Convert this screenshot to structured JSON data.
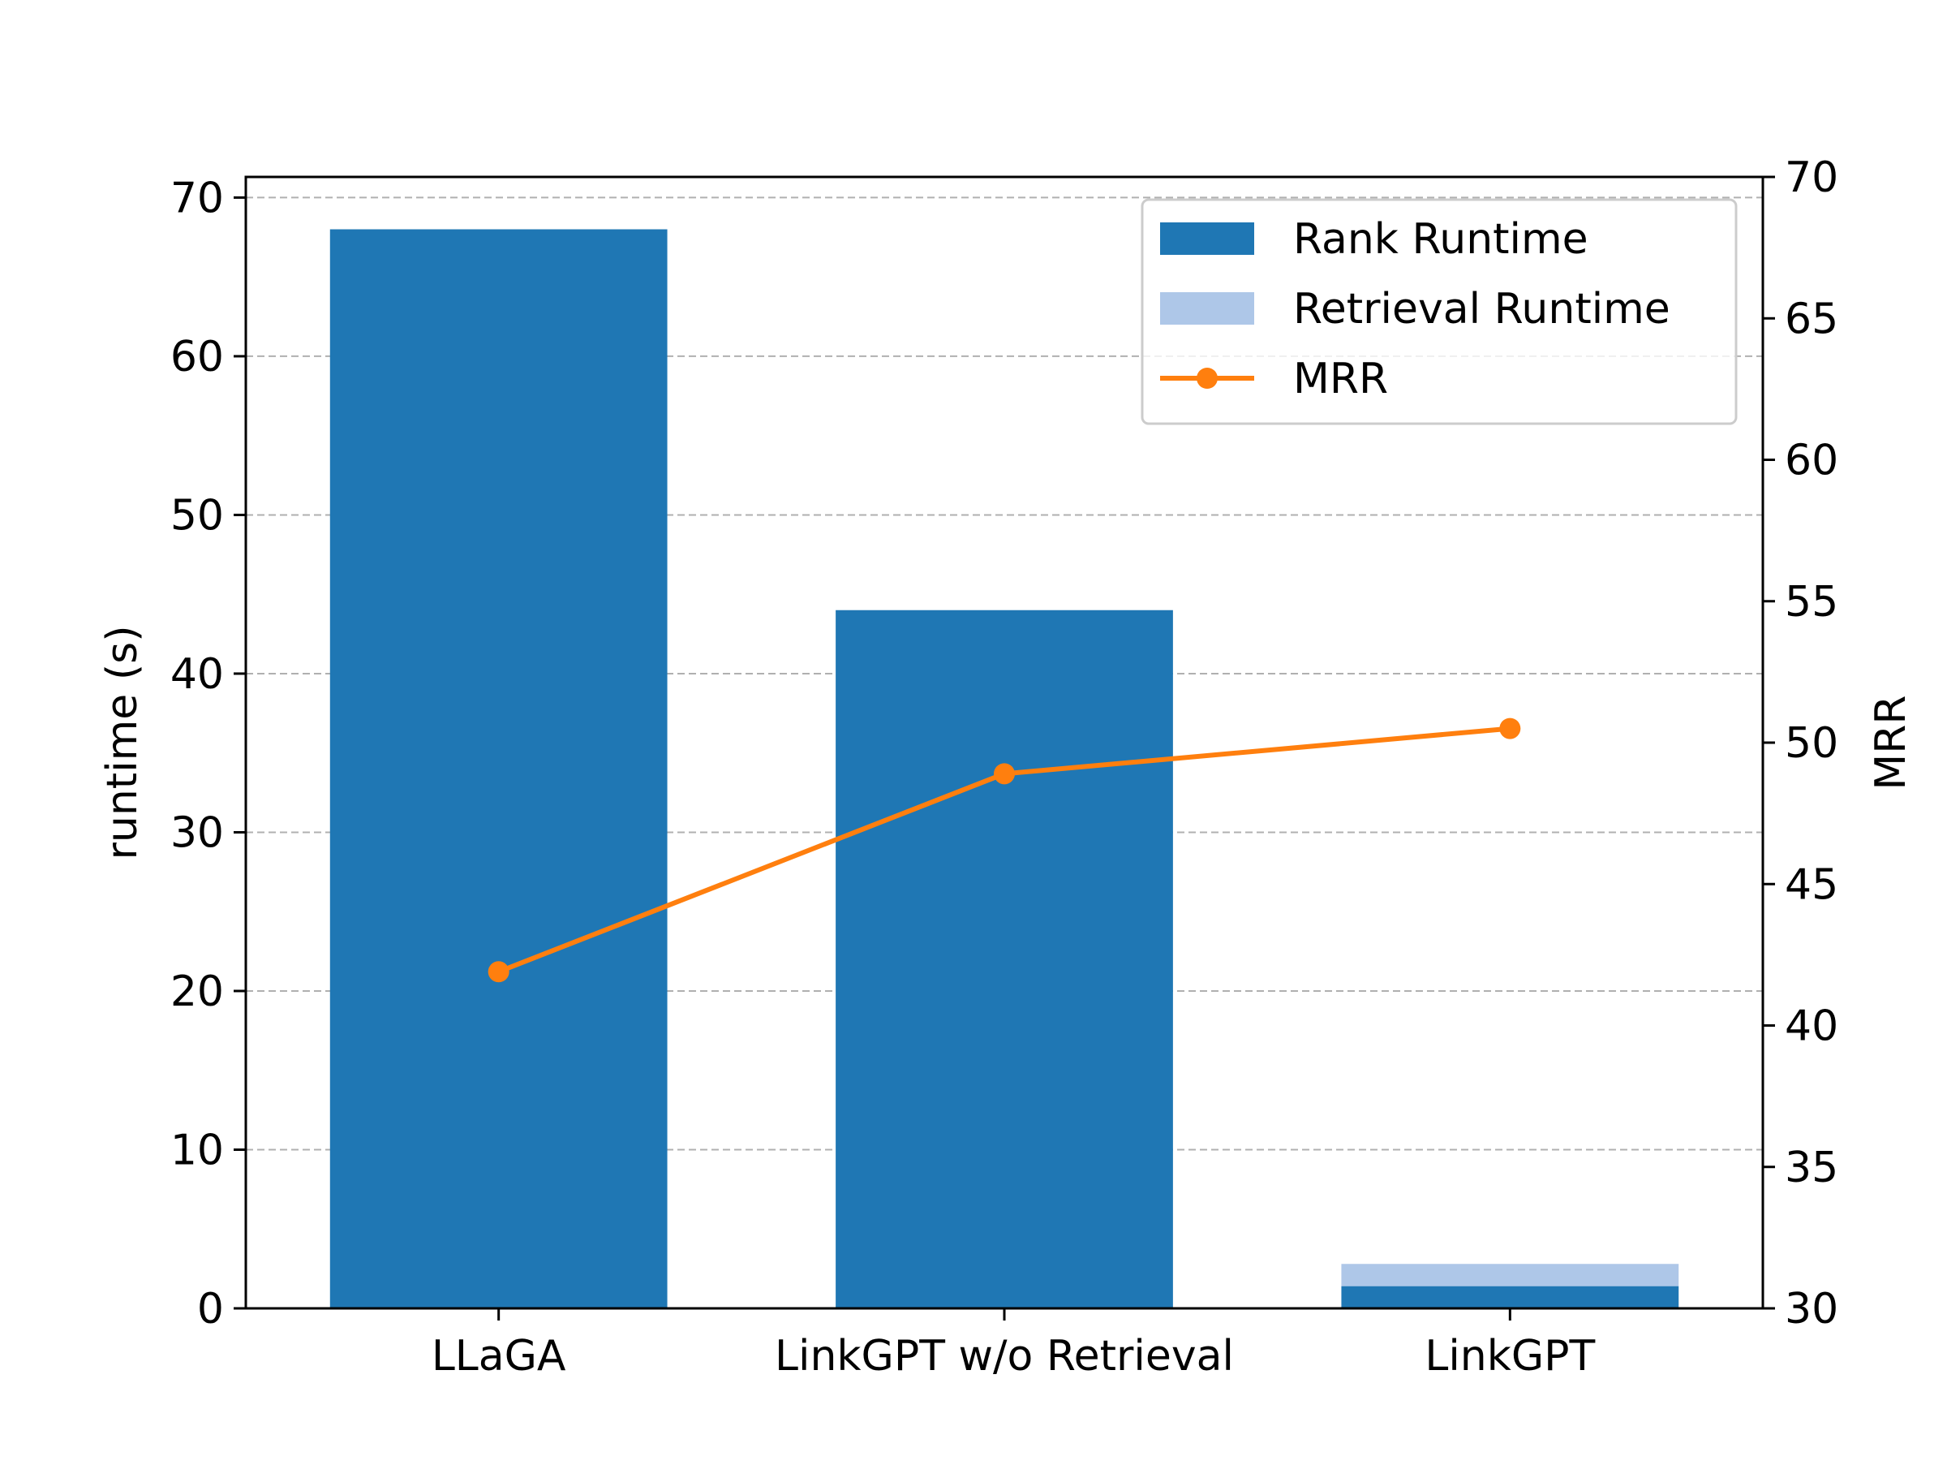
{
  "chart_data": {
    "type": "bar",
    "categories": [
      "LLaGA",
      "LinkGPT w/o Retrieval",
      "LinkGPT"
    ],
    "series": [
      {
        "name": "Rank Runtime",
        "kind": "bar",
        "axis": "left",
        "color": "#1f77b4",
        "values": [
          68.0,
          44.0,
          1.4
        ]
      },
      {
        "name": "Retrieval Runtime",
        "kind": "bar",
        "axis": "left",
        "stacked_on": "Rank Runtime",
        "color": "#aec7e8",
        "values": [
          0.0,
          0.0,
          1.4
        ]
      },
      {
        "name": "MRR",
        "kind": "line",
        "axis": "right",
        "color": "#ff7f0e",
        "values": [
          41.9,
          48.9,
          50.5
        ]
      }
    ],
    "ylabel": "runtime (s)",
    "y2label": "MRR",
    "xlabel": "",
    "ylim": [
      0,
      71.3
    ],
    "y2lim": [
      30,
      70
    ],
    "yticks": [
      "0",
      "10",
      "20",
      "30",
      "40",
      "50",
      "60",
      "70"
    ],
    "y2ticks": [
      "30",
      "35",
      "40",
      "45",
      "50",
      "55",
      "60",
      "65",
      "70"
    ],
    "grid": "horizontal dashed",
    "legend_position": "top-right"
  }
}
